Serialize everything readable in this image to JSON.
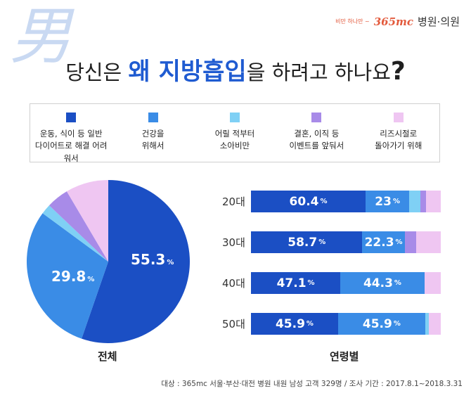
{
  "watermark": "男",
  "logo": {
    "slogan": "비만 하나만 ~",
    "brand": "365mc",
    "clinic": "병원·의원"
  },
  "title": {
    "pre": "당신은 ",
    "highlight": "왜 지방흡입",
    "post": "을 하려고 하나요",
    "mark": "?"
  },
  "colors": [
    "#1b4fc4",
    "#3a8ce6",
    "#7fd0f5",
    "#a88be8",
    "#efc6f2"
  ],
  "legend": [
    {
      "label": "운동, 식이 등 일반\n다이어트로 해결 어려워서"
    },
    {
      "label": "건강을\n위해서"
    },
    {
      "label": "어릴 적부터\n소아비만"
    },
    {
      "label": "결혼, 이직 등\n이벤트를 앞둬서"
    },
    {
      "label": "리즈시절로\n돌아가기 위해"
    }
  ],
  "chart_data": [
    {
      "type": "pie",
      "title": "전체",
      "categories": [
        "운동, 식이 등 일반 다이어트로 해결 어려워서",
        "건강을 위해서",
        "어릴 적부터 소아비만",
        "결혼, 이직 등 이벤트를 앞둬서",
        "리즈시절로 돌아가기 위해"
      ],
      "values": [
        55.3,
        29.8,
        2,
        4.4,
        8.5
      ],
      "labels": [
        {
          "value": "55.3",
          "unit": "%"
        },
        {
          "value": "29.8",
          "unit": "%"
        }
      ]
    },
    {
      "type": "bar",
      "stacked": true,
      "orientation": "horizontal",
      "title": "연령별",
      "categories": [
        "20대",
        "30대",
        "40대",
        "50대"
      ],
      "series": [
        {
          "name": "운동, 식이 등 일반 다이어트로 해결 어려워서",
          "values": [
            60.4,
            58.7,
            47.1,
            45.9
          ]
        },
        {
          "name": "건강을 위해서",
          "values": [
            23,
            22.3,
            44.3,
            45.9
          ]
        },
        {
          "name": "어릴 적부터 소아비만",
          "values": [
            6,
            0,
            0,
            2
          ]
        },
        {
          "name": "결혼, 이직 등 이벤트를 앞둬서",
          "values": [
            3,
            6,
            0,
            0
          ]
        },
        {
          "name": "리즈시절로 돌아가기 위해",
          "values": [
            7.6,
            13,
            8.6,
            6.2
          ]
        }
      ],
      "labels": [
        [
          "60.4",
          "23"
        ],
        [
          "58.7",
          "22.3"
        ],
        [
          "47.1",
          "44.3"
        ],
        [
          "45.9",
          "45.9"
        ]
      ],
      "unit": "%",
      "xlim": [
        0,
        100
      ]
    }
  ],
  "footer": "대상 : 365mc 서울·부산·대전 병원 내원 남성 고객 329명 / 조사 기간 : 2017.8.1~2018.3.31"
}
